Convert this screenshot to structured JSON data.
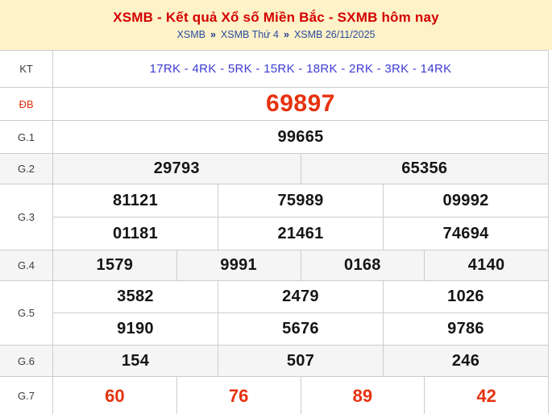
{
  "header": {
    "title": "XSMB - Kết quả Xổ số Miền Bắc - SXMB hôm nay",
    "breadcrumb": {
      "separator": "»",
      "items": [
        "XSMB",
        "XSMB Thứ 4",
        "XSMB 26/11/2025"
      ]
    }
  },
  "colors": {
    "banner_bg": "#fdf2c8",
    "title_red": "#d40000",
    "breadcrumb_blue": "#2d4ba0",
    "kt_blue": "#3c3cd2",
    "special_red": "#e6320f",
    "stripe_bg": "#f5f5f5",
    "border_gray": "#cccccc"
  },
  "table": {
    "rows": {
      "kt": {
        "label": "KT",
        "value": "17RK - 4RK - 5RK - 15RK - 18RK - 2RK - 3RK - 14RK"
      },
      "db": {
        "label": "ĐB",
        "value": "69897"
      },
      "g1": {
        "label": "G.1",
        "value": "99665"
      },
      "g2": {
        "label": "G.2",
        "values": [
          "29793",
          "65356"
        ]
      },
      "g3": {
        "label": "G.3",
        "row1": [
          "81121",
          "75989",
          "09992"
        ],
        "row2": [
          "01181",
          "21461",
          "74694"
        ]
      },
      "g4": {
        "label": "G.4",
        "values": [
          "1579",
          "9991",
          "0168",
          "4140"
        ]
      },
      "g5": {
        "label": "G.5",
        "row1": [
          "3582",
          "2479",
          "1026"
        ],
        "row2": [
          "9190",
          "5676",
          "9786"
        ]
      },
      "g6": {
        "label": "G.6",
        "values": [
          "154",
          "507",
          "246"
        ]
      },
      "g7": {
        "label": "G.7",
        "values": [
          "60",
          "76",
          "89",
          "42"
        ]
      }
    }
  }
}
